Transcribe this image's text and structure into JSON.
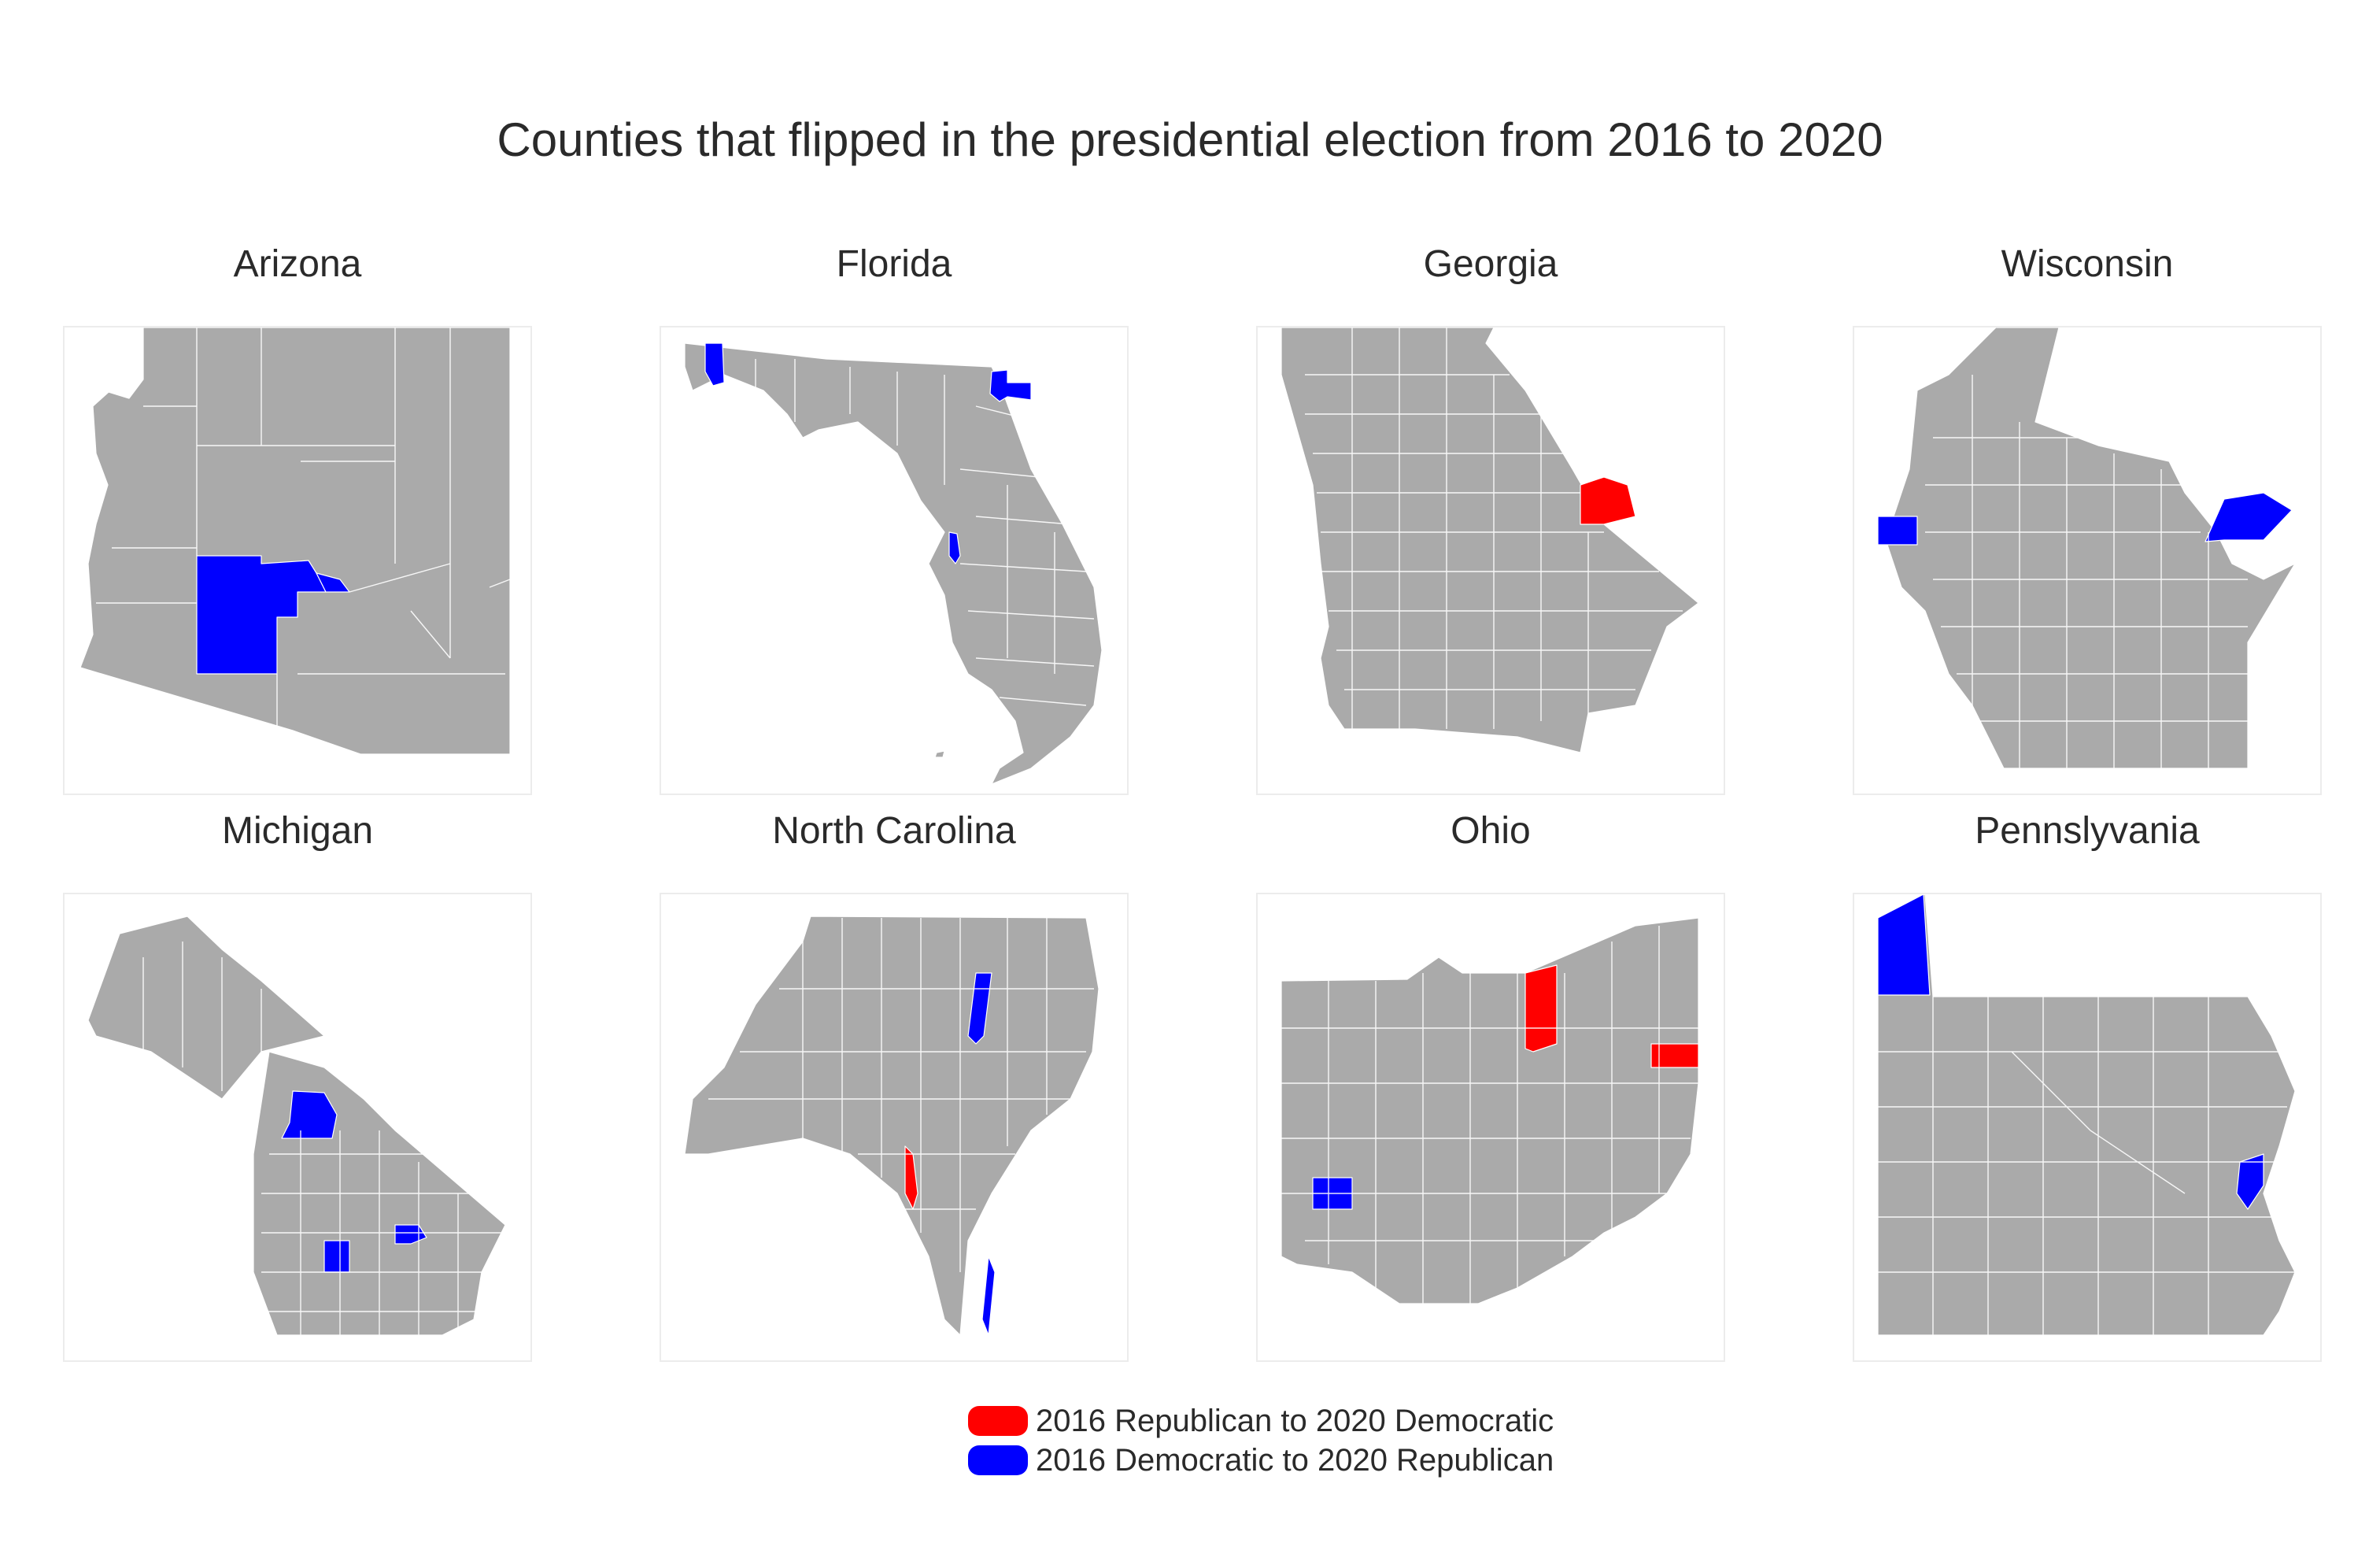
{
  "title": "Counties that flipped in the presidential election from 2016 to 2020",
  "colors": {
    "base_county": "#aaaaaa",
    "rep_to_dem": "#ff0000",
    "dem_to_rep": "#0000ff",
    "county_border": "#ffffff"
  },
  "panels": [
    {
      "name": "Arizona",
      "flipped_rep_to_dem": 0,
      "flipped_dem_to_rep": 2
    },
    {
      "name": "Florida",
      "flipped_rep_to_dem": 0,
      "flipped_dem_to_rep": 3
    },
    {
      "name": "Georgia",
      "flipped_rep_to_dem": 1,
      "flipped_dem_to_rep": 0
    },
    {
      "name": "Wisconsin",
      "flipped_rep_to_dem": 0,
      "flipped_dem_to_rep": 2
    },
    {
      "name": "Michigan",
      "flipped_rep_to_dem": 0,
      "flipped_dem_to_rep": 3
    },
    {
      "name": "North Carolina",
      "flipped_rep_to_dem": 1,
      "flipped_dem_to_rep": 2
    },
    {
      "name": "Ohio",
      "flipped_rep_to_dem": 2,
      "flipped_dem_to_rep": 1
    },
    {
      "name": "Pennslyvania",
      "flipped_rep_to_dem": 0,
      "flipped_dem_to_rep": 2
    }
  ],
  "legend": {
    "items": [
      {
        "label": "2016 Republican to 2020 Democratic",
        "color": "#ff0000"
      },
      {
        "label": "2016 Democratic to 2020 Republican",
        "color": "#0000ff"
      }
    ]
  }
}
